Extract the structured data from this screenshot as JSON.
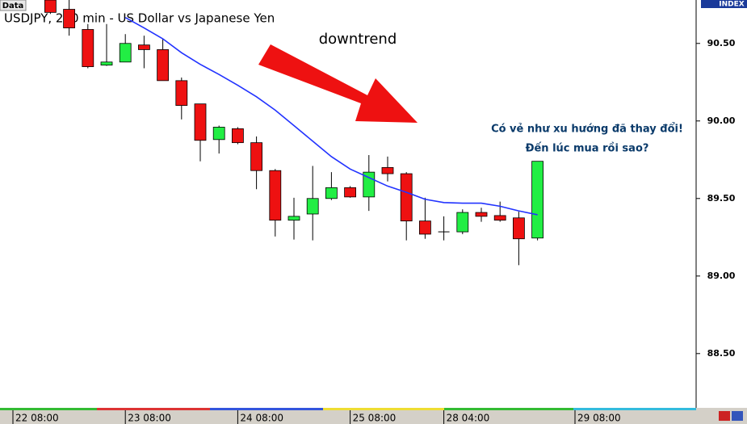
{
  "chart_data": {
    "type": "candlestick",
    "title": "USDJPY, 240 min - US Dollar vs Japanese Yen",
    "data_tab": "Data",
    "index_label": "INDEX",
    "annotations": [
      "downtrend",
      "Có vẻ như xu hướng đã thay đổi!",
      "Đến lúc mua rồi sao?"
    ],
    "categories": [
      "22 08:00",
      null,
      null,
      null,
      null,
      null,
      "23 08:00",
      null,
      null,
      null,
      null,
      null,
      "24 08:00",
      null,
      null,
      null,
      null,
      null,
      "25 08:00",
      null,
      null,
      null,
      null,
      "28 04:00",
      null,
      null,
      null,
      null,
      null,
      null,
      "29 08:00"
    ],
    "open": [
      null,
      null,
      90.78,
      90.72,
      90.59,
      90.36,
      90.38,
      90.49,
      90.46,
      90.26,
      90.11,
      89.88,
      89.95,
      89.86,
      89.68,
      89.36,
      89.4,
      89.5,
      89.57,
      89.51,
      89.7,
      89.66,
      89.355,
      89.285,
      89.285,
      89.41,
      89.39,
      89.375,
      89.245,
      null,
      null
    ],
    "high": [
      null,
      null,
      90.78,
      90.78,
      90.625,
      90.625,
      90.56,
      90.55,
      90.53,
      90.28,
      90.11,
      89.97,
      89.96,
      89.9,
      89.69,
      89.505,
      89.71,
      89.67,
      89.58,
      89.78,
      89.77,
      89.67,
      89.505,
      89.385,
      89.43,
      89.44,
      89.48,
      89.415,
      89.74,
      null,
      null
    ],
    "low": [
      null,
      null,
      90.69,
      90.55,
      90.34,
      90.355,
      90.38,
      90.34,
      90.26,
      90.01,
      89.74,
      89.79,
      89.85,
      89.56,
      89.255,
      89.235,
      89.23,
      89.49,
      89.505,
      89.42,
      89.61,
      89.23,
      89.24,
      89.23,
      89.27,
      89.35,
      89.35,
      89.07,
      89.23,
      null,
      null
    ],
    "close": [
      null,
      null,
      90.7,
      90.6,
      90.35,
      90.38,
      90.5,
      90.46,
      90.26,
      90.1,
      89.875,
      89.96,
      89.86,
      89.68,
      89.36,
      89.385,
      89.5,
      89.57,
      89.51,
      89.67,
      89.66,
      89.355,
      89.27,
      89.285,
      89.41,
      89.385,
      89.36,
      89.24,
      89.74,
      null,
      null
    ],
    "up_color": "#22ee44",
    "down_color": "#ee1111",
    "moving_average": {
      "color": "#2233ff",
      "values": [
        null,
        null,
        null,
        null,
        null,
        null,
        90.667,
        90.6,
        90.53,
        90.44,
        90.365,
        90.3,
        90.23,
        90.156,
        90.07,
        89.97,
        89.87,
        89.77,
        89.69,
        89.635,
        89.58,
        89.54,
        89.495,
        89.474,
        89.47,
        89.47,
        89.45,
        89.42,
        89.395,
        null,
        null
      ]
    },
    "ylim": [
      88.15,
      90.78
    ],
    "yticks": [
      {
        "value": 90.5,
        "label": "90.50"
      },
      {
        "value": 90.0,
        "label": "90.00"
      },
      {
        "value": 89.5,
        "label": "89.50"
      },
      {
        "value": 89.0,
        "label": "89.00"
      },
      {
        "value": 88.5,
        "label": "88.50"
      }
    ]
  }
}
